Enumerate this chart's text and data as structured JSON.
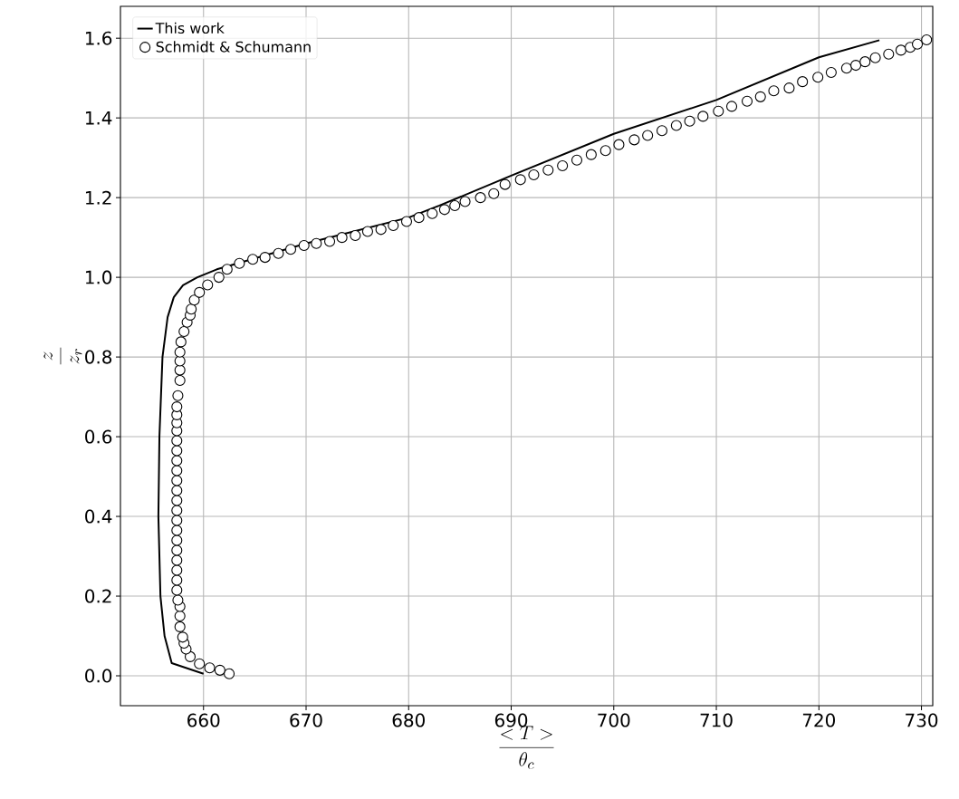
{
  "chart_data": {
    "type": "line",
    "xlabel": "\\frac{<T>}{\\theta_c}",
    "ylabel": "\\frac{z}{z_r}",
    "xlim": [
      651.9,
      731.1
    ],
    "ylim": [
      -0.075,
      1.68
    ],
    "xticks": [
      660,
      670,
      680,
      690,
      700,
      710,
      720,
      730
    ],
    "yticks": [
      {
        "value": 0,
        "label": "0.0"
      },
      {
        "value": 0.2,
        "label": "0.2"
      },
      {
        "value": 0.4,
        "label": "0.4"
      },
      {
        "value": 0.6,
        "label": "0.6"
      },
      {
        "value": 0.8,
        "label": "0.8"
      },
      {
        "value": 1.0,
        "label": "1.0"
      },
      {
        "value": 1.2,
        "label": "1.2"
      },
      {
        "value": 1.4,
        "label": "1.4"
      },
      {
        "value": 1.6,
        "label": "1.6"
      }
    ],
    "grid": true,
    "legend": "top left",
    "series": [
      {
        "name": "This work",
        "color": "#000000",
        "marker": "none",
        "line_style": "solid",
        "x": [
          660.0,
          656.9,
          656.2,
          655.8,
          655.6,
          655.7,
          656.0,
          656.5,
          657.1,
          658.0,
          659.4,
          661.3,
          664.0,
          670.0,
          680.0,
          683.0,
          690.0,
          700.0,
          710.0,
          720.0,
          725.9
        ],
        "values": [
          0.005,
          0.032,
          0.1,
          0.2,
          0.4,
          0.6,
          0.8,
          0.9,
          0.95,
          0.98,
          1.0,
          1.02,
          1.04,
          1.085,
          1.15,
          1.18,
          1.255,
          1.36,
          1.445,
          1.552,
          1.595
        ]
      },
      {
        "name": "Schmidt & Schumann",
        "type": "scatter",
        "color": "#000000",
        "marker": "circle",
        "x": [
          662.5,
          661.6,
          660.6,
          659.6,
          658.7,
          658.3,
          658.1,
          657.97,
          657.7,
          657.7,
          657.7,
          657.5,
          657.4,
          657.4,
          657.4,
          657.4,
          657.4,
          657.4,
          657.4,
          657.4,
          657.4,
          657.4,
          657.4,
          657.4,
          657.4,
          657.4,
          657.4,
          657.4,
          657.4,
          657.4,
          657.4,
          657.4,
          657.5,
          657.7,
          657.7,
          657.7,
          657.7,
          657.8,
          658.1,
          658.4,
          658.7,
          658.8,
          659.1,
          659.6,
          660.4,
          661.5,
          662.3,
          663.5,
          664.8,
          666.0,
          667.3,
          668.5,
          669.8,
          671.0,
          672.3,
          673.5,
          674.8,
          676.0,
          677.3,
          678.5,
          679.8,
          681.0,
          682.3,
          683.5,
          684.5,
          685.5,
          687.0,
          688.3,
          689.4,
          690.9,
          692.2,
          693.6,
          695.0,
          696.4,
          697.8,
          699.2,
          700.5,
          702.0,
          703.3,
          704.7,
          706.1,
          707.4,
          708.7,
          710.2,
          711.5,
          713.0,
          714.3,
          715.6,
          717.1,
          718.4,
          719.9,
          721.2,
          722.7,
          723.6,
          724.5,
          725.5,
          726.8,
          728.0,
          728.9,
          729.6,
          730.5
        ],
        "values": [
          0.005,
          0.014,
          0.02,
          0.03,
          0.048,
          0.067,
          0.082,
          0.097,
          0.123,
          0.15,
          0.174,
          0.19,
          0.215,
          0.24,
          0.265,
          0.29,
          0.315,
          0.34,
          0.365,
          0.39,
          0.415,
          0.44,
          0.465,
          0.49,
          0.515,
          0.54,
          0.565,
          0.59,
          0.615,
          0.635,
          0.655,
          0.675,
          0.703,
          0.741,
          0.767,
          0.79,
          0.812,
          0.838,
          0.864,
          0.887,
          0.905,
          0.92,
          0.943,
          0.962,
          0.981,
          1.0,
          1.02,
          1.035,
          1.045,
          1.05,
          1.06,
          1.07,
          1.08,
          1.085,
          1.09,
          1.1,
          1.105,
          1.115,
          1.12,
          1.13,
          1.14,
          1.15,
          1.16,
          1.17,
          1.18,
          1.19,
          1.2,
          1.21,
          1.233,
          1.245,
          1.257,
          1.269,
          1.28,
          1.294,
          1.308,
          1.318,
          1.333,
          1.345,
          1.356,
          1.368,
          1.381,
          1.392,
          1.404,
          1.417,
          1.429,
          1.442,
          1.453,
          1.468,
          1.475,
          1.491,
          1.502,
          1.514,
          1.525,
          1.532,
          1.541,
          1.551,
          1.56,
          1.57,
          1.577,
          1.585,
          1.596
        ]
      }
    ]
  }
}
